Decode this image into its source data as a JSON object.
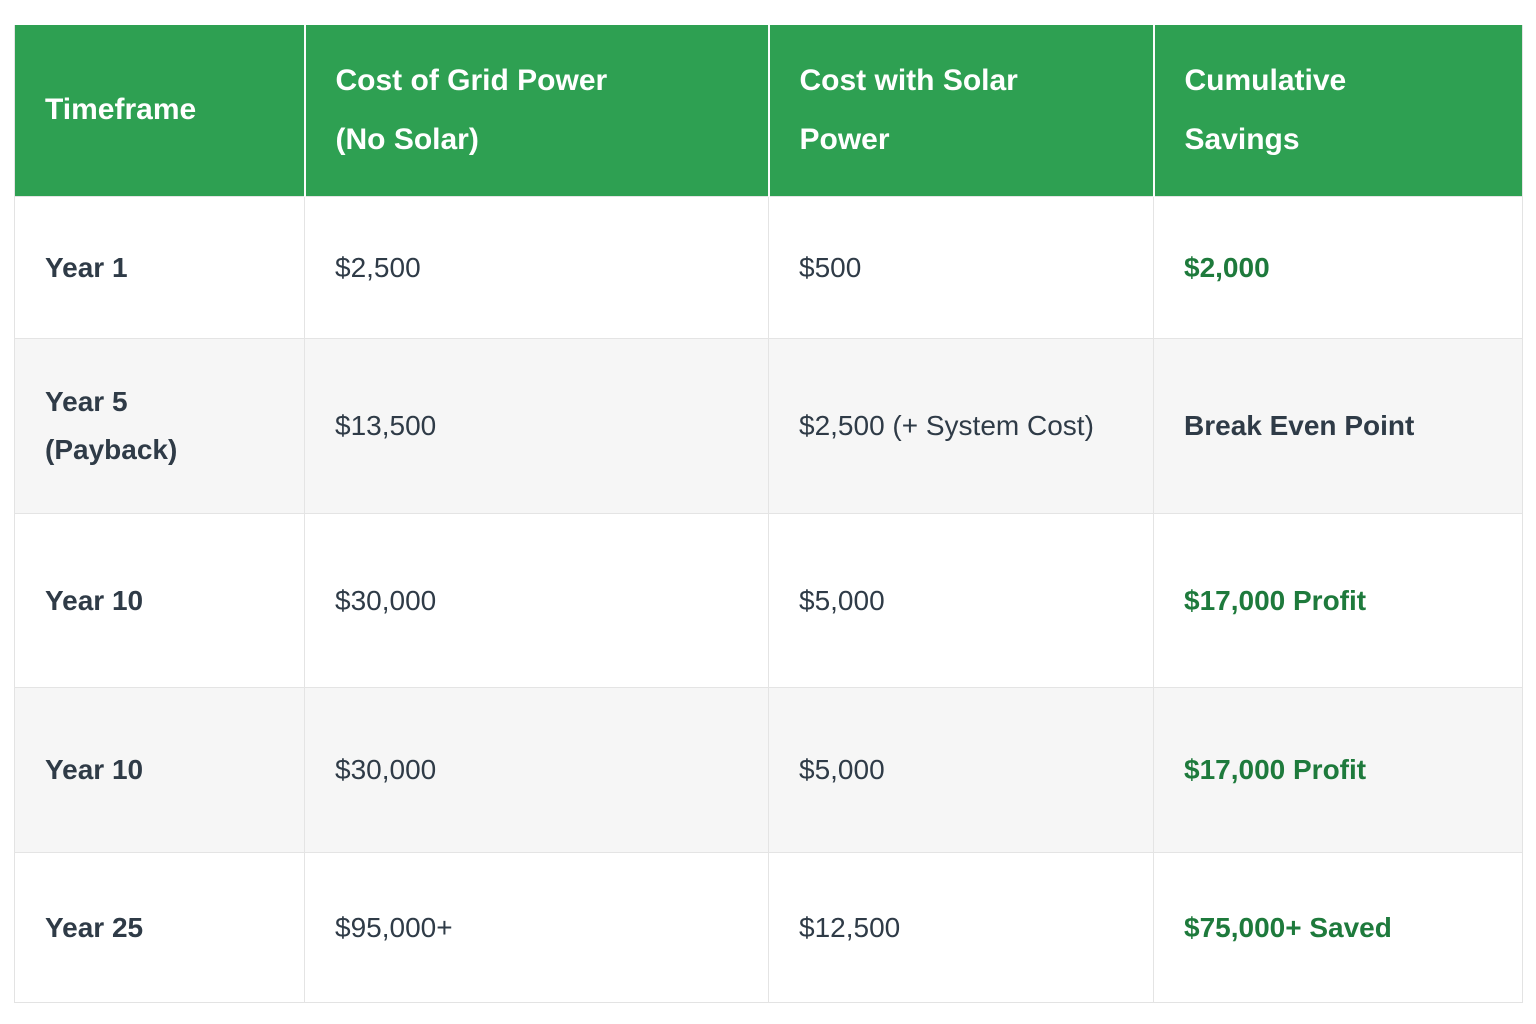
{
  "colors": {
    "header_bg": "#2EA052",
    "header_text": "#FFFFFF",
    "body_text": "#2F3B47",
    "positive_green_text": "#1E7A3C",
    "stripe_row_bg": "#F6F6F6",
    "grid_border": "#E4E4E4",
    "page_bg": "#FFFFFF"
  },
  "header": {
    "timeframe": "Timeframe",
    "grid_line1": "Cost of Grid Power",
    "grid_line2": "(No Solar)",
    "solar_line1": "Cost with Solar",
    "solar_line2": "Power",
    "savings_line1": "Cumulative",
    "savings_line2": "Savings"
  },
  "rows": [
    {
      "timeframe": "Year 1",
      "grid": "$2,500",
      "solar": "$500",
      "savings": "$2,000"
    },
    {
      "timeframe": "Year 5",
      "timeframe2": "(Payback)",
      "grid": "$13,500",
      "solar": "$2,500 (+ System Cost)",
      "savings": "Break Even Point"
    },
    {
      "timeframe": "Year 10",
      "grid": "$30,000",
      "solar": "$5,000",
      "savings": "$17,000 Profit"
    },
    {
      "timeframe": "Year 10",
      "grid": "$30,000",
      "solar": "$5,000",
      "savings": "$17,000 Profit"
    },
    {
      "timeframe": "Year 25",
      "grid": "$95,000+",
      "solar": "$12,500",
      "savings": "$75,000+ Saved"
    }
  ],
  "chart_data": {
    "type": "table",
    "columns": [
      "Timeframe",
      "Cost of Grid Power (No Solar)",
      "Cost with Solar Power",
      "Cumulative Savings"
    ],
    "rows": [
      [
        "Year 1",
        "$2,500",
        "$500",
        "$2,000"
      ],
      [
        "Year 5 (Payback)",
        "$13,500",
        "$2,500 (+ System Cost)",
        "Break Even Point"
      ],
      [
        "Year 10",
        "$30,000",
        "$5,000",
        "$17,000 Profit"
      ],
      [
        "Year 10",
        "$30,000",
        "$5,000",
        "$17,000 Profit"
      ],
      [
        "Year 25",
        "$95,000+",
        "$12,500",
        "$75,000+ Saved"
      ]
    ],
    "layout": {
      "header_fill": "#2EA052",
      "zebra_striping": true,
      "savings_column_highlight_color": "#1E7A3C"
    }
  }
}
